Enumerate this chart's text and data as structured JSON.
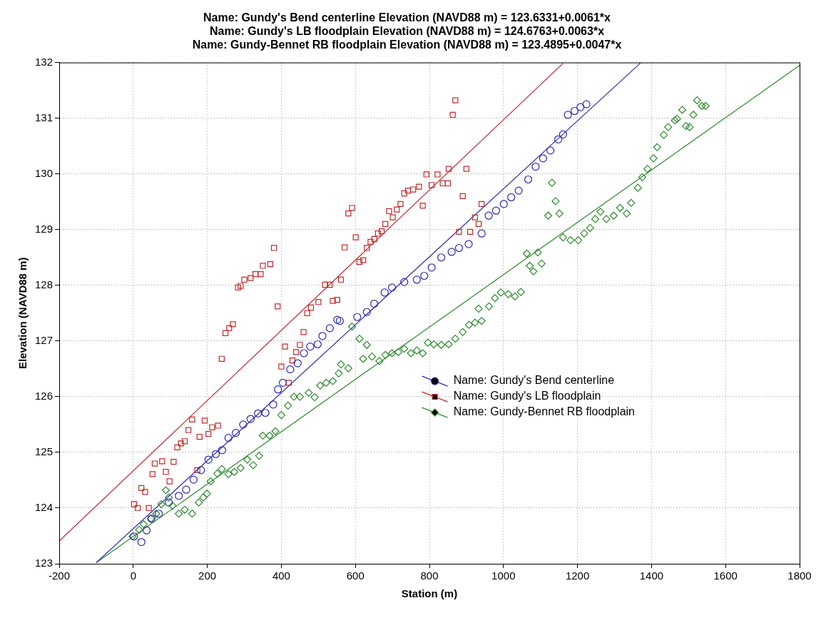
{
  "chart_data": {
    "type": "scatter",
    "title": "Name: Gundy's Bend centerline Elevation (NAVD88 m) = 123.6331+0.0061*x\nName: Gundy's LB floodplain Elevation (NAVD88 m) = 124.6763+0.0063*x\nName: Gundy-Bennet RB floodplain Elevation (NAVD88 m) = 123.4895+0.0047*x",
    "xlabel": "Station (m)",
    "ylabel": "Elevation (NAVD88 m)",
    "xlim": [
      -200,
      1800
    ],
    "xticks": [
      -200,
      0,
      200,
      400,
      600,
      800,
      1000,
      1200,
      1400,
      1600,
      1800
    ],
    "ylim": [
      123,
      132
    ],
    "yticks": [
      123,
      124,
      125,
      126,
      127,
      128,
      129,
      130,
      131,
      132
    ],
    "grid": true,
    "legend": "bottom right",
    "series": [
      {
        "name": "Name: Gundy's Bend centerline",
        "color": "#2a2ab4",
        "marker": "circle",
        "x": [
          2,
          22,
          36,
          49,
          69,
          96,
          123,
          143,
          163,
          183,
          203,
          223,
          240,
          257,
          277,
          297,
          317,
          337,
          357,
          378,
          391,
          404,
          424,
          444,
          461,
          478,
          498,
          511,
          531,
          551,
          558,
          605,
          631,
          651,
          679,
          699,
          732,
          766,
          786,
          806,
          832,
          860,
          880,
          906,
          941,
          960,
          980,
          1001,
          1021,
          1041,
          1067,
          1087,
          1107,
          1127,
          1148,
          1161,
          1174,
          1192,
          1208,
          1224
        ],
        "values": [
          123.49,
          123.39,
          123.6,
          123.81,
          123.9,
          124.1,
          124.22,
          124.33,
          124.51,
          124.68,
          124.87,
          124.97,
          125.04,
          125.26,
          125.35,
          125.5,
          125.6,
          125.7,
          125.71,
          125.86,
          126.13,
          126.25,
          126.49,
          126.6,
          126.78,
          126.9,
          126.94,
          127.09,
          127.23,
          127.38,
          127.36,
          127.43,
          127.52,
          127.67,
          127.87,
          127.96,
          128.06,
          128.1,
          128.17,
          128.32,
          128.5,
          128.6,
          128.67,
          128.74,
          128.93,
          129.25,
          129.34,
          129.46,
          129.58,
          129.7,
          129.9,
          130.13,
          130.28,
          130.42,
          130.62,
          130.71,
          131.06,
          131.13,
          131.2,
          131.25
        ]
      },
      {
        "name": "Name: Gundy's LB floodplain",
        "color": "#c42a2a",
        "marker": "square",
        "x": [
          2,
          12,
          22,
          32,
          42,
          52,
          58,
          78,
          88,
          98,
          109,
          119,
          129,
          139,
          149,
          159,
          173,
          179,
          193,
          203,
          213,
          229,
          239,
          249,
          259,
          269,
          283,
          290,
          300,
          317,
          330,
          344,
          350,
          370,
          380,
          390,
          400,
          410,
          420,
          430,
          440,
          450,
          460,
          470,
          480,
          500,
          518,
          531,
          539,
          551,
          561,
          571,
          581,
          591,
          601,
          611,
          621,
          631,
          641,
          651,
          661,
          671,
          681,
          691,
          701,
          712,
          722,
          732,
          742,
          756,
          772,
          782,
          792,
          806,
          822,
          836,
          850,
          852,
          863,
          870,
          880,
          890,
          900,
          910,
          923,
          933,
          941
        ],
        "values": [
          124.07,
          124.0,
          124.36,
          124.29,
          124.0,
          124.61,
          124.8,
          124.84,
          124.65,
          124.48,
          124.83,
          125.09,
          125.16,
          125.2,
          125.4,
          125.59,
          124.68,
          125.28,
          125.57,
          125.33,
          125.45,
          125.48,
          126.68,
          127.14,
          127.23,
          127.3,
          127.96,
          127.99,
          128.1,
          128.13,
          128.2,
          128.2,
          128.35,
          128.38,
          128.67,
          127.62,
          126.54,
          126.9,
          126.25,
          126.65,
          126.8,
          126.93,
          127.16,
          127.5,
          127.6,
          127.7,
          128.01,
          128.01,
          127.72,
          127.74,
          128.1,
          128.68,
          129.29,
          129.39,
          128.86,
          128.42,
          128.45,
          128.67,
          128.78,
          128.83,
          128.93,
          128.97,
          129.1,
          129.33,
          129.22,
          129.36,
          129.46,
          129.65,
          129.7,
          129.72,
          129.77,
          129.43,
          129.99,
          129.8,
          129.99,
          129.83,
          129.83,
          130.09,
          131.06,
          131.32,
          128.96,
          129.6,
          130.09,
          128.96,
          129.22,
          129.1,
          129.46
        ]
      },
      {
        "name": "Name: Gundy-Bennet RB floodplain",
        "color": "#2e8a2e",
        "marker": "diamond",
        "x": [
          -2,
          16,
          28,
          48,
          62,
          76,
          88,
          96,
          106,
          123,
          139,
          159,
          177,
          189,
          199,
          209,
          227,
          239,
          257,
          273,
          290,
          308,
          324,
          340,
          350,
          368,
          384,
          400,
          418,
          434,
          450,
          474,
          490,
          505,
          521,
          539,
          555,
          561,
          581,
          591,
          611,
          621,
          631,
          645,
          665,
          681,
          699,
          716,
          732,
          750,
          766,
          782,
          796,
          812,
          832,
          852,
          870,
          890,
          907,
          923,
          933,
          941,
          961,
          977,
          993,
          1013,
          1031,
          1047,
          1063,
          1071,
          1081,
          1093,
          1103,
          1121,
          1131,
          1141,
          1151,
          1161,
          1181,
          1202,
          1218,
          1234,
          1248,
          1262,
          1278,
          1298,
          1315,
          1333,
          1345,
          1363,
          1375,
          1389,
          1405,
          1415,
          1433,
          1445,
          1463,
          1469,
          1483,
          1493,
          1503,
          1513,
          1523,
          1536,
          1546
        ],
        "values": [
          123.49,
          123.61,
          123.71,
          123.81,
          123.9,
          124.07,
          124.32,
          124.19,
          124.04,
          123.9,
          123.97,
          123.9,
          124.1,
          124.19,
          124.26,
          124.48,
          124.62,
          124.7,
          124.61,
          124.65,
          124.72,
          124.87,
          124.77,
          124.94,
          125.3,
          125.3,
          125.38,
          125.67,
          125.84,
          126.0,
          126.0,
          126.07,
          125.99,
          126.2,
          126.25,
          126.28,
          126.42,
          126.58,
          126.51,
          127.26,
          127.04,
          126.68,
          126.93,
          126.72,
          126.64,
          126.75,
          126.78,
          126.8,
          126.86,
          126.78,
          126.83,
          126.78,
          126.97,
          126.94,
          126.93,
          126.94,
          127.04,
          127.16,
          127.29,
          127.33,
          127.58,
          127.36,
          127.62,
          127.77,
          127.87,
          127.84,
          127.8,
          127.88,
          128.57,
          128.35,
          128.25,
          128.59,
          128.39,
          129.25,
          129.84,
          129.51,
          129.29,
          128.86,
          128.81,
          128.81,
          128.93,
          129.03,
          129.19,
          129.32,
          129.19,
          129.25,
          129.39,
          129.29,
          129.48,
          129.75,
          129.94,
          130.09,
          130.28,
          130.48,
          130.7,
          130.84,
          130.96,
          130.99,
          131.15,
          130.86,
          130.84,
          131.06,
          131.32,
          131.22,
          131.22
        ]
      },
      {
        "type": "line",
        "color": "#2a2ab4",
        "marker": "none",
        "line_style": "solid",
        "x": [
          -100,
          1370
        ],
        "values": [
          123.02,
          131.99
        ]
      },
      {
        "type": "line",
        "color": "#c42a2a",
        "marker": "none",
        "line_style": "solid",
        "x": [
          -200,
          1160
        ],
        "values": [
          123.41,
          131.98
        ]
      },
      {
        "type": "line",
        "color": "#2e8a2e",
        "marker": "none",
        "line_style": "solid",
        "x": [
          -100,
          1800
        ],
        "values": [
          123.02,
          131.95
        ]
      }
    ]
  }
}
